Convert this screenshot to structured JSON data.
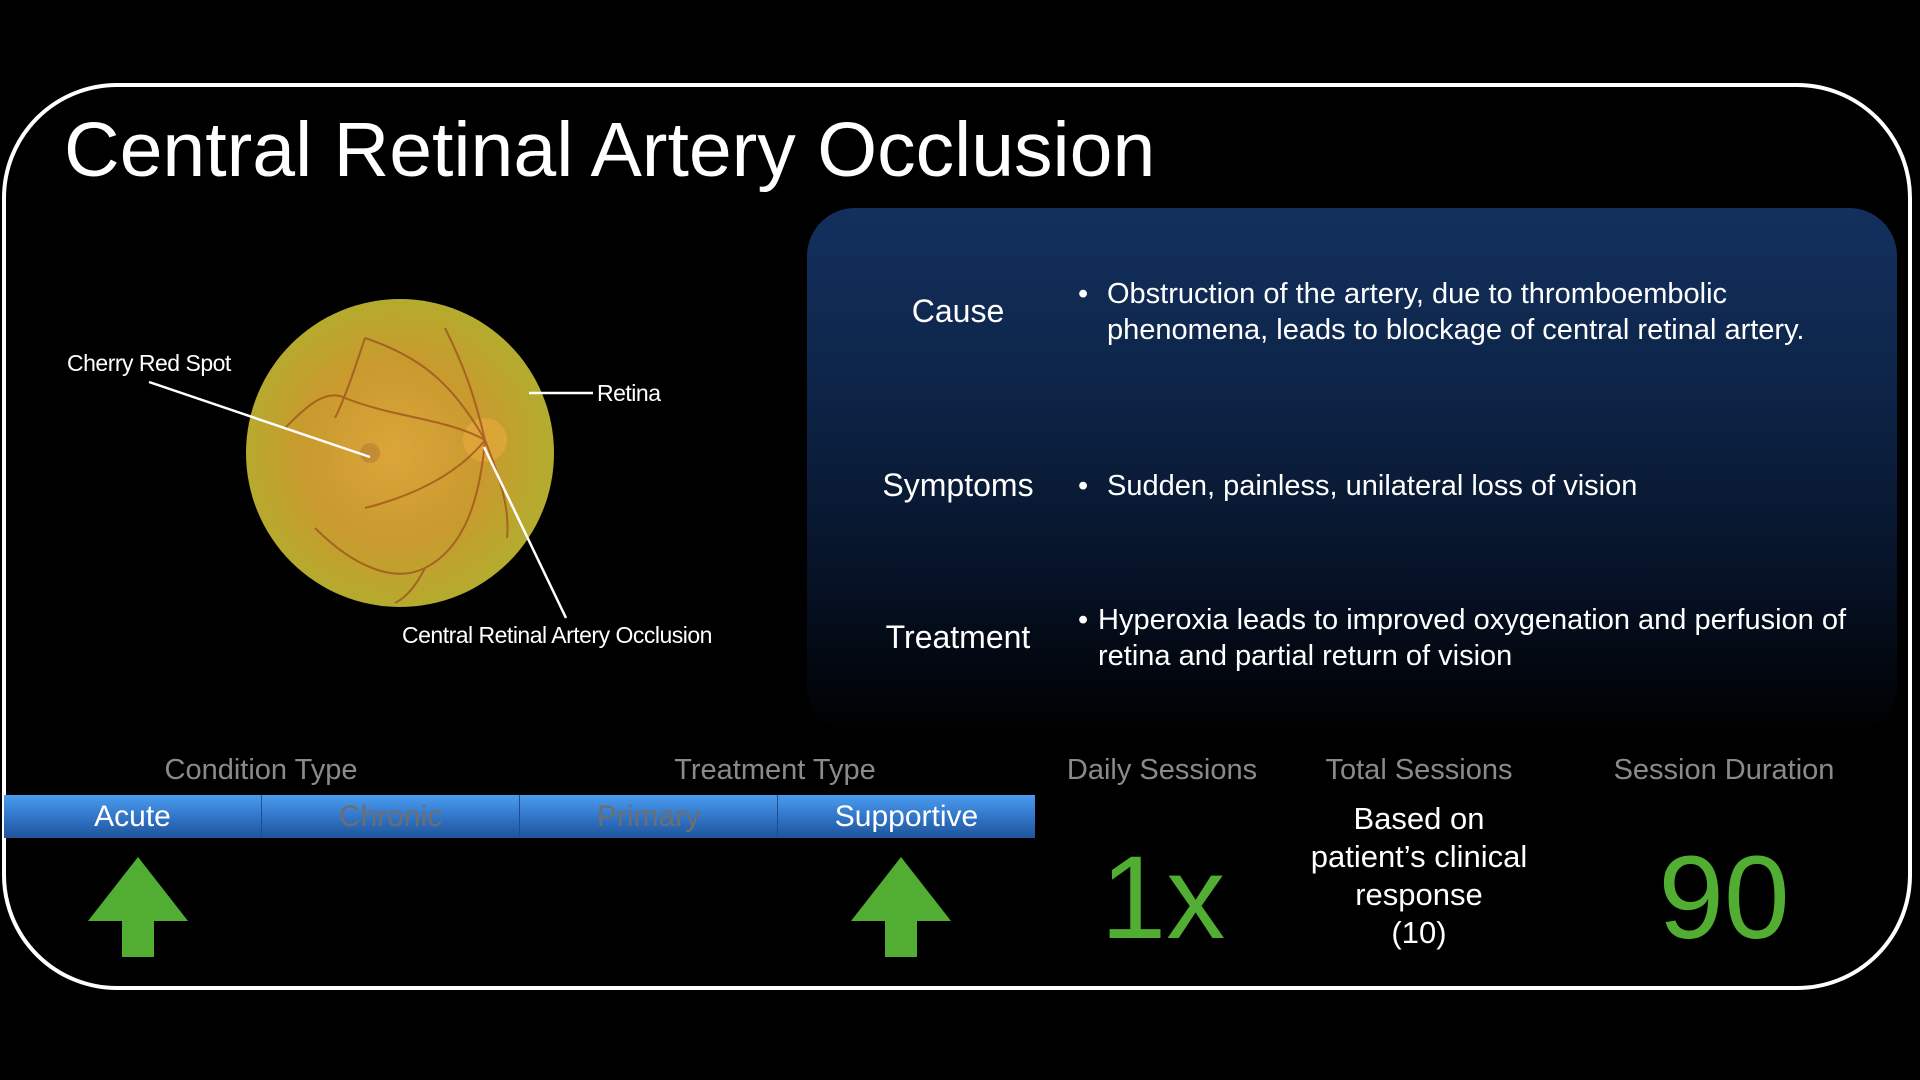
{
  "title": "Central Retinal Artery Occlusion",
  "figure": {
    "labels": {
      "cherry_red_spot": "Cherry Red Spot",
      "retina": "Retina",
      "crao": "Central Retinal Artery Occlusion"
    }
  },
  "info": [
    {
      "label": "Cause",
      "bullet": "Obstruction of the artery, due to thromboembolic phenomena, leads to blockage of central retinal artery."
    },
    {
      "label": "Symptoms",
      "bullet": "Sudden, painless, unilateral loss of vision"
    },
    {
      "label": "Treatment",
      "bullet": "Hyperoxia leads to improved oxygenation and perfusion of retina and partial return of vision"
    }
  ],
  "bottom": {
    "condition_type": "Condition Type",
    "treatment_type": "Treatment Type",
    "daily_sessions": "Daily Sessions",
    "total_sessions": "Total Sessions",
    "session_duration": "Session Duration",
    "segments": [
      {
        "label": "Acute",
        "selected": true
      },
      {
        "label": "Chronic",
        "selected": false
      },
      {
        "label": "Primary",
        "selected": false
      },
      {
        "label": "Supportive",
        "selected": true
      }
    ],
    "daily_value": "1x",
    "total_value_lines": [
      "Based on",
      "patient’s clinical",
      "response",
      "(10)"
    ],
    "duration_value": "90"
  },
  "colors": {
    "accent_green": "#52ae32",
    "segment_blue": "#3a86d8",
    "panel_blue": "#13305e"
  },
  "bullet_char": "•"
}
